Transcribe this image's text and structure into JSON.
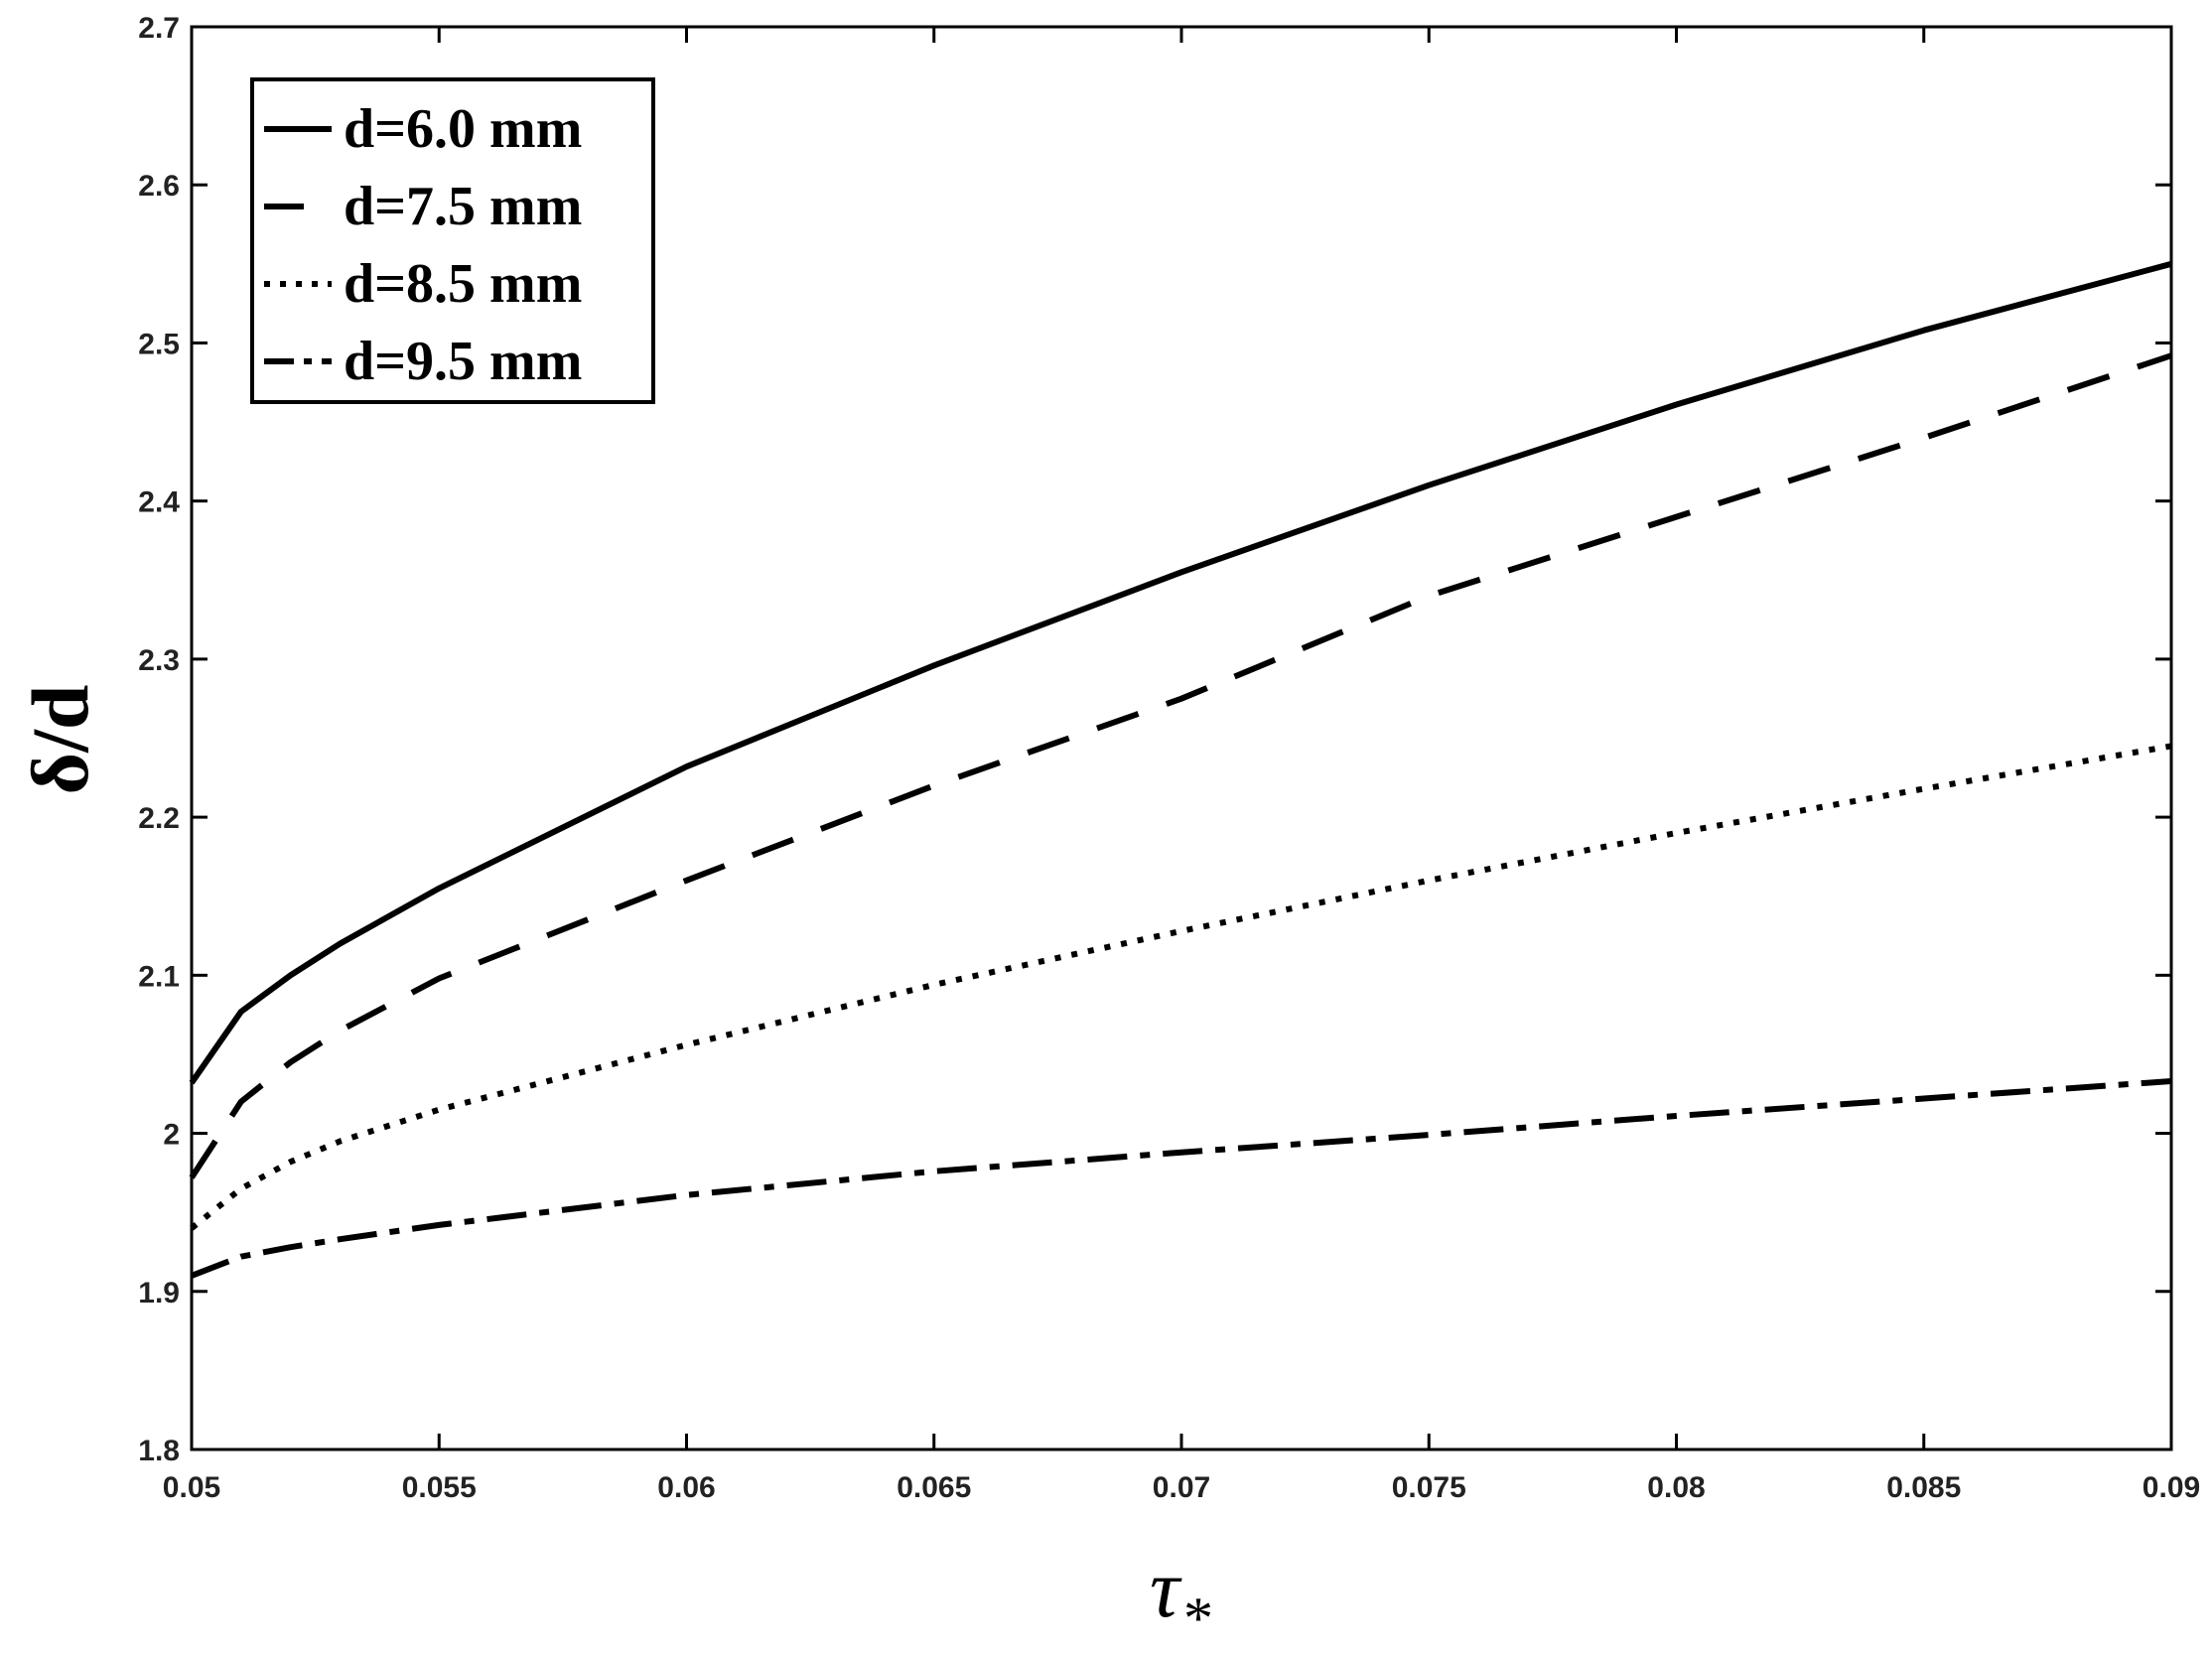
{
  "chart_data": {
    "type": "line",
    "xlabel": "τ",
    "xlabel_subscript": "*",
    "ylabel": "δ/d",
    "xlim": [
      0.05,
      0.09
    ],
    "ylim": [
      1.8,
      2.7
    ],
    "xticks": [
      0.05,
      0.055,
      0.06,
      0.065,
      0.07,
      0.075,
      0.08,
      0.085,
      0.09
    ],
    "xtick_labels": [
      "0.05",
      "0.055",
      "0.06",
      "0.065",
      "0.07",
      "0.075",
      "0.08",
      "0.085",
      "0.09"
    ],
    "yticks": [
      1.8,
      1.9,
      2.0,
      2.1,
      2.2,
      2.3,
      2.4,
      2.5,
      2.6,
      2.7
    ],
    "ytick_labels": [
      "1.8",
      "1.9",
      "2",
      "2.1",
      "2.2",
      "2.3",
      "2.4",
      "2.5",
      "2.6",
      "2.7"
    ],
    "grid": false,
    "legend_position": "top-left",
    "line_color": "#000000",
    "x": [
      0.05,
      0.051,
      0.052,
      0.053,
      0.055,
      0.06,
      0.065,
      0.07,
      0.075,
      0.08,
      0.085,
      0.09
    ],
    "series": [
      {
        "name": "d=6.0 mm",
        "style": "solid",
        "values": [
          2.032,
          2.077,
          2.1,
          2.12,
          2.155,
          2.232,
          2.296,
          2.355,
          2.41,
          2.461,
          2.508,
          2.55
        ]
      },
      {
        "name": "d=7.5 mm",
        "style": "dashed",
        "values": [
          1.972,
          2.02,
          2.045,
          2.065,
          2.098,
          2.16,
          2.22,
          2.275,
          2.34,
          2.39,
          2.44,
          2.492
        ]
      },
      {
        "name": "d=8.5 mm",
        "style": "dotted",
        "values": [
          1.94,
          1.965,
          1.982,
          1.995,
          2.015,
          2.056,
          2.094,
          2.128,
          2.16,
          2.19,
          2.218,
          2.245
        ]
      },
      {
        "name": "d=9.5 mm",
        "style": "dashdot",
        "values": [
          1.91,
          1.922,
          1.928,
          1.933,
          1.942,
          1.961,
          1.976,
          1.988,
          1.999,
          2.011,
          2.022,
          2.033
        ]
      }
    ]
  }
}
